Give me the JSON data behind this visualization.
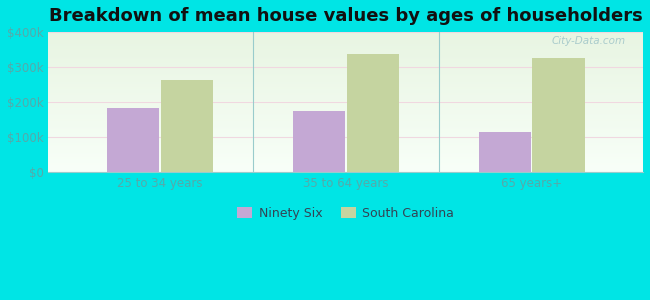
{
  "title": "Breakdown of mean house values by ages of householders",
  "categories": [
    "25 to 34 years",
    "35 to 64 years",
    "65 years+"
  ],
  "series": [
    {
      "name": "Ninety Six",
      "values": [
        182000,
        175000,
        115000
      ],
      "color": "#c4a8d4"
    },
    {
      "name": "South Carolina",
      "values": [
        262000,
        338000,
        325000
      ],
      "color": "#c5d4a0"
    }
  ],
  "ylim": [
    0,
    400000
  ],
  "yticks": [
    0,
    100000,
    200000,
    300000,
    400000
  ],
  "ytick_labels": [
    "$0",
    "$100k",
    "$200k",
    "$300k",
    "$400k"
  ],
  "outer_bg": "#00e5e5",
  "plot_bg_top": "#e8f5e2",
  "plot_bg_bottom": "#f8fff8",
  "tick_color": "#55aaaa",
  "title_fontsize": 13,
  "tick_fontsize": 8.5,
  "legend_fontsize": 9,
  "bar_width": 0.28,
  "watermark_text": "City-Data.com",
  "watermark_color": "#aacccc"
}
